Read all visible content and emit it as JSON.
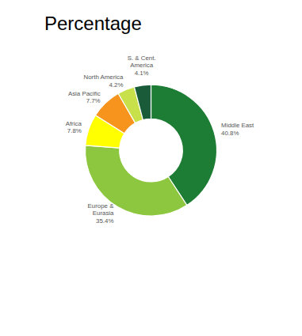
{
  "chart_data": {
    "type": "pie",
    "title": "Percentage",
    "categories": [
      "Middle East",
      "Europe &\nEurasia",
      "Africa",
      "Asia Pacific",
      "North America",
      "S. & Cent.\nAmerica"
    ],
    "values": [
      40.8,
      35.4,
      7.8,
      7.7,
      4.2,
      4.1
    ],
    "value_labels": [
      "40.8%",
      "35.4%",
      "7.8%",
      "7.7%",
      "4.2%",
      "4.1%"
    ],
    "colors": [
      "#1e7d34",
      "#8dc63f",
      "#ffff00",
      "#f7941d",
      "#c8e04a",
      "#1a5c3a"
    ],
    "data_labels": true
  }
}
